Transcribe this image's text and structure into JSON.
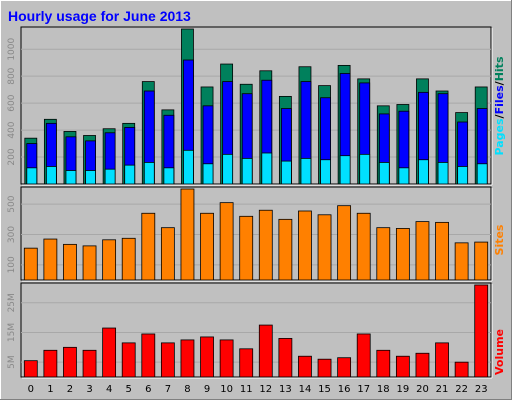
{
  "title": "Hourly usage for June 2013",
  "colors": {
    "background": "#c0c0c0",
    "hits": "#00805c",
    "files": "#0000ff",
    "pages": "#00e0ff",
    "sites": "#ff8000",
    "volume": "#ff0000",
    "title": "#0000ff",
    "tick": "#888888"
  },
  "chart_data": [
    {
      "type": "bar",
      "title": "Hourly usage for June 2013",
      "categories": [
        "0",
        "1",
        "2",
        "3",
        "4",
        "5",
        "6",
        "7",
        "8",
        "9",
        "10",
        "11",
        "12",
        "13",
        "14",
        "15",
        "16",
        "17",
        "18",
        "19",
        "20",
        "21",
        "22",
        "23"
      ],
      "series": [
        {
          "name": "Hits",
          "values": [
            340,
            480,
            390,
            360,
            410,
            450,
            760,
            550,
            1150,
            720,
            890,
            740,
            840,
            650,
            870,
            730,
            880,
            780,
            580,
            590,
            780,
            690,
            530,
            720
          ]
        },
        {
          "name": "Files",
          "values": [
            300,
            450,
            350,
            320,
            380,
            420,
            690,
            510,
            920,
            580,
            760,
            670,
            770,
            560,
            760,
            640,
            820,
            750,
            520,
            540,
            680,
            670,
            460,
            560
          ]
        },
        {
          "name": "Pages",
          "values": [
            120,
            130,
            100,
            100,
            110,
            140,
            160,
            120,
            250,
            150,
            220,
            190,
            230,
            170,
            190,
            180,
            210,
            220,
            160,
            120,
            180,
            160,
            130,
            150
          ]
        }
      ],
      "yticks": [
        "200",
        "400",
        "600",
        "800",
        "1000"
      ],
      "ylim": [
        0,
        1150
      ],
      "ylabel_parts": [
        "Pages",
        "/",
        "Files",
        "/",
        "Hits"
      ]
    },
    {
      "type": "bar",
      "categories": [
        "0",
        "1",
        "2",
        "3",
        "4",
        "5",
        "6",
        "7",
        "8",
        "9",
        "10",
        "11",
        "12",
        "13",
        "14",
        "15",
        "16",
        "17",
        "18",
        "19",
        "20",
        "21",
        "22",
        "23"
      ],
      "series": [
        {
          "name": "Sites",
          "values": [
            210,
            270,
            235,
            225,
            265,
            275,
            440,
            345,
            600,
            440,
            510,
            420,
            460,
            400,
            455,
            430,
            490,
            440,
            345,
            340,
            385,
            380,
            245,
            250
          ]
        }
      ],
      "yticks": [
        "100",
        "300",
        "500"
      ],
      "ylim": [
        0,
        600
      ],
      "ylabel": "Sites"
    },
    {
      "type": "bar",
      "categories": [
        "0",
        "1",
        "2",
        "3",
        "4",
        "5",
        "6",
        "7",
        "8",
        "9",
        "10",
        "11",
        "12",
        "13",
        "14",
        "15",
        "16",
        "17",
        "18",
        "19",
        "20",
        "21",
        "22",
        "23"
      ],
      "series": [
        {
          "name": "Volume",
          "values": [
            5.5,
            9.0,
            10.0,
            9.0,
            16.5,
            11.5,
            14.5,
            11.5,
            12.5,
            13.5,
            12.5,
            9.5,
            17.5,
            13.0,
            7.0,
            6.0,
            6.5,
            14.5,
            9.0,
            7.0,
            8.0,
            11.5,
            5.0,
            31.0
          ]
        }
      ],
      "yticks": [
        "5M",
        "15M",
        "25M"
      ],
      "ylim": [
        0,
        31
      ],
      "ylabel": "Volume"
    }
  ]
}
